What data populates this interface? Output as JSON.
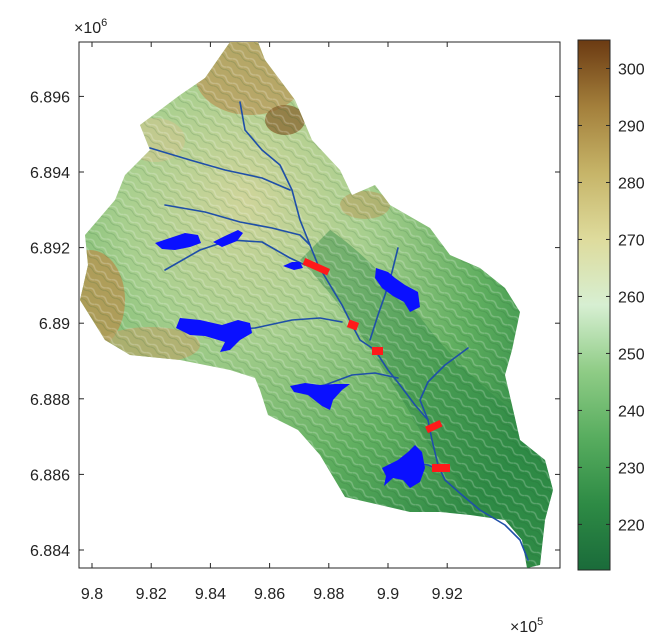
{
  "map": {
    "x_axis": {
      "ticks": [
        "9.8",
        "9.82",
        "9.84",
        "9.86",
        "9.88",
        "9.9",
        "9.92"
      ],
      "multiplier_base": "×10",
      "multiplier_exp": "5"
    },
    "y_axis": {
      "ticks": [
        "6.884",
        "6.886",
        "6.888",
        "6.89",
        "6.892",
        "6.894",
        "6.896"
      ],
      "multiplier_base": "×10",
      "multiplier_exp": "6"
    },
    "colorbar": {
      "ticks": [
        "220",
        "230",
        "240",
        "250",
        "260",
        "270",
        "280",
        "290",
        "300"
      ],
      "min": 212,
      "max": 305,
      "colors": [
        "#1a6b3a",
        "#2e8b45",
        "#58ad5f",
        "#8fcc86",
        "#d7efd2",
        "#dedb9c",
        "#c6b468",
        "#a37f3b",
        "#6b3a12"
      ]
    },
    "features": {
      "watershed_fill": "#6fb36a",
      "river_color": "#1f4fa8",
      "reservoir_color": "#0a10ff",
      "dam_color": "#ff1a1a",
      "reservoir_count": 7,
      "dam_count": 5
    }
  }
}
